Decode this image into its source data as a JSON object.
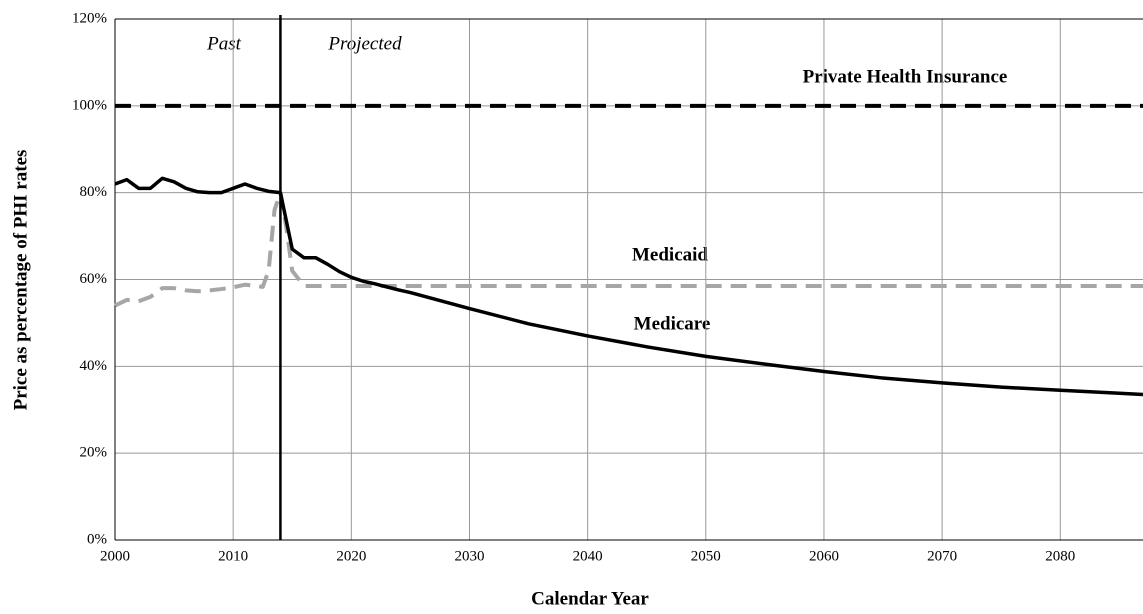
{
  "chart_data": {
    "type": "line",
    "xlabel": "Calendar Year",
    "ylabel": "Price as percentage of PHI rates",
    "xlim": [
      2000,
      2087
    ],
    "ylim": [
      0,
      120
    ],
    "xticks": [
      2000,
      2010,
      2020,
      2030,
      2040,
      2050,
      2060,
      2070,
      2080
    ],
    "yticks": [
      {
        "value": 0,
        "label": "0%"
      },
      {
        "value": 20,
        "label": "20%"
      },
      {
        "value": 40,
        "label": "40%"
      },
      {
        "value": 60,
        "label": "60%"
      },
      {
        "value": 80,
        "label": "80%"
      },
      {
        "value": 100,
        "label": "100%"
      },
      {
        "value": 120,
        "label": "120%"
      }
    ],
    "grid": true,
    "divider_x": 2014,
    "annotations": [
      "Past",
      "Projected"
    ],
    "series": [
      {
        "name": "Private Health Insurance",
        "color": "#000000",
        "dash": true,
        "x": [
          2000,
          2087
        ],
        "values": [
          100,
          100
        ]
      },
      {
        "name": "Medicaid",
        "color": "#a6a6a6",
        "dash": true,
        "x": [
          2000,
          2001,
          2002,
          2003,
          2004,
          2005,
          2006,
          2007,
          2008,
          2009,
          2010,
          2011,
          2012,
          2012.5,
          2013,
          2013.5,
          2014,
          2014.5,
          2015,
          2016,
          2020,
          2087
        ],
        "values": [
          54,
          55.3,
          55,
          56,
          58,
          58,
          57.5,
          57.3,
          57.5,
          57.8,
          58.2,
          58.8,
          58.5,
          58.3,
          62,
          76,
          80,
          72,
          62,
          58.5,
          58.5,
          58.5
        ]
      },
      {
        "name": "Medicare",
        "color": "#000000",
        "dash": false,
        "x": [
          2000,
          2001,
          2002,
          2003,
          2004,
          2005,
          2006,
          2007,
          2008,
          2009,
          2010,
          2011,
          2012,
          2013,
          2014,
          2015,
          2016,
          2017,
          2018,
          2019,
          2020,
          2021,
          2022,
          2023,
          2024,
          2025,
          2030,
          2035,
          2040,
          2045,
          2050,
          2055,
          2060,
          2065,
          2070,
          2075,
          2080,
          2085,
          2087
        ],
        "values": [
          82,
          83,
          81,
          81,
          83.3,
          82.5,
          81,
          80.2,
          80,
          80,
          81,
          82,
          81,
          80.3,
          80,
          67,
          65,
          65,
          63.5,
          61.8,
          60.5,
          59.6,
          59,
          58.3,
          57.6,
          57,
          53.3,
          49.8,
          47,
          44.5,
          42.3,
          40.5,
          38.8,
          37.3,
          36.2,
          35.2,
          34.5,
          33.8,
          33.5
        ]
      }
    ]
  }
}
